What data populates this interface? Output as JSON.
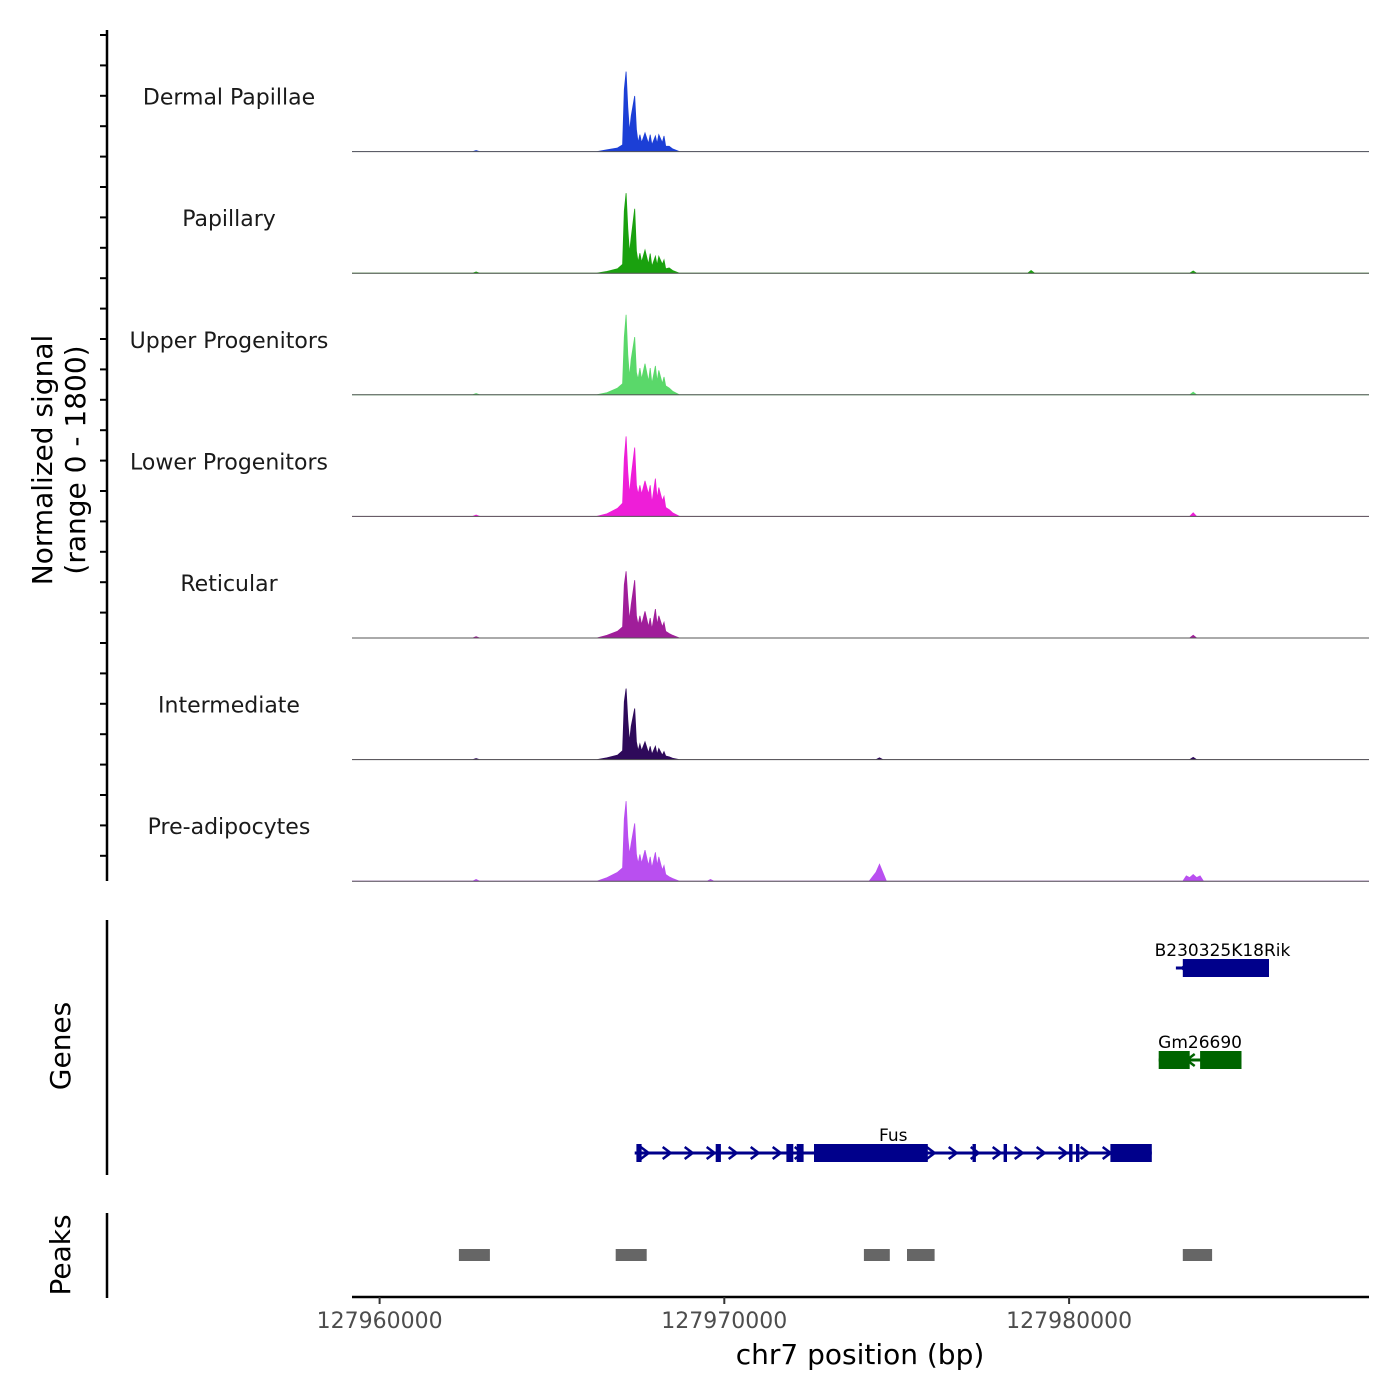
{
  "chart_data": {
    "type": "area",
    "title": "",
    "chromosome": "chr7",
    "xlabel": "chr7 position (bp)",
    "ylabel": "Normalized signal",
    "ylabel_range": "(range 0 - 1800)",
    "ylim": [
      0,
      1800
    ],
    "xlim": [
      127959200,
      127988700
    ],
    "x_ticks": [
      127960000,
      127970000,
      127980000
    ],
    "x_tick_labels": [
      "127960000",
      "127970000",
      "127980000"
    ],
    "genes_track_label": "Genes",
    "peaks_track_label": "Peaks",
    "tracks": [
      {
        "name": "Dermal Papillae",
        "color": "#1c3fd6",
        "x": [
          127959200,
          127962700,
          127962800,
          127962900,
          127964000,
          127966300,
          127966600,
          127966900,
          127967050,
          127967100,
          127967150,
          127967200,
          127967250,
          127967300,
          127967400,
          127967450,
          127967500,
          127967550,
          127967600,
          127967700,
          127967800,
          127967850,
          127967900,
          127968000,
          127968050,
          127968100,
          127968200,
          127968250,
          127968300,
          127968400,
          127968500,
          127968700,
          127969000,
          127972000,
          127974800,
          127983500,
          127985500,
          127988700
        ],
        "y": [
          0,
          0,
          25,
          0,
          0,
          0,
          40,
          80,
          150,
          1400,
          1800,
          1000,
          450,
          800,
          1250,
          500,
          200,
          380,
          200,
          420,
          180,
          380,
          150,
          350,
          180,
          380,
          200,
          350,
          120,
          120,
          60,
          0,
          0,
          0,
          0,
          0,
          0,
          0
        ]
      },
      {
        "name": "Papillary",
        "color": "#1aa10f",
        "x": [
          127959200,
          127962700,
          127962800,
          127962900,
          127966300,
          127966600,
          127966900,
          127967050,
          127967100,
          127967150,
          127967200,
          127967250,
          127967300,
          127967400,
          127967450,
          127967500,
          127967550,
          127967600,
          127967700,
          127967800,
          127967850,
          127967900,
          127968000,
          127968050,
          127968100,
          127968200,
          127968250,
          127968300,
          127968400,
          127968500,
          127968700,
          127978800,
          127978900,
          127979000,
          127983500,
          127983600,
          127983700,
          127988700
        ],
        "y": [
          0,
          0,
          30,
          0,
          0,
          40,
          100,
          200,
          1400,
          1800,
          1000,
          450,
          800,
          1450,
          500,
          250,
          450,
          250,
          520,
          200,
          440,
          150,
          380,
          180,
          380,
          200,
          300,
          100,
          120,
          60,
          0,
          0,
          60,
          0,
          0,
          50,
          0,
          0
        ]
      },
      {
        "name": "Upper Progenitors",
        "color": "#5ad86a",
        "x": [
          127959200,
          127962700,
          127962800,
          127962900,
          127966300,
          127966600,
          127966900,
          127967050,
          127967100,
          127967150,
          127967200,
          127967250,
          127967300,
          127967400,
          127967450,
          127967500,
          127967550,
          127967600,
          127967700,
          127967800,
          127967850,
          127967900,
          127968000,
          127968050,
          127968100,
          127968200,
          127968250,
          127968300,
          127968400,
          127968500,
          127968700,
          127983500,
          127983600,
          127983700,
          127988700
        ],
        "y": [
          0,
          0,
          30,
          0,
          0,
          50,
          150,
          250,
          1300,
          1800,
          900,
          400,
          800,
          1300,
          500,
          350,
          600,
          350,
          700,
          300,
          600,
          250,
          650,
          300,
          550,
          250,
          400,
          200,
          150,
          80,
          0,
          0,
          60,
          0,
          0
        ]
      },
      {
        "name": "Lower Progenitors",
        "color": "#ee1ed8",
        "x": [
          127959200,
          127962700,
          127962800,
          127962900,
          127966300,
          127966600,
          127966900,
          127967050,
          127967100,
          127967150,
          127967200,
          127967250,
          127967300,
          127967400,
          127967450,
          127967500,
          127967550,
          127967600,
          127967700,
          127967800,
          127967850,
          127967900,
          127968000,
          127968050,
          127968100,
          127968200,
          127968250,
          127968300,
          127968400,
          127968500,
          127968700,
          127983500,
          127983600,
          127983700,
          127988700
        ],
        "y": [
          0,
          0,
          30,
          0,
          0,
          60,
          180,
          300,
          1300,
          1800,
          1000,
          500,
          900,
          1550,
          700,
          500,
          700,
          500,
          800,
          500,
          700,
          300,
          850,
          400,
          650,
          350,
          450,
          200,
          150,
          80,
          0,
          0,
          80,
          0,
          0
        ]
      },
      {
        "name": "Reticular",
        "color": "#a01e9a",
        "x": [
          127959200,
          127962700,
          127962800,
          127962900,
          127966300,
          127966600,
          127966900,
          127967050,
          127967100,
          127967150,
          127967200,
          127967250,
          127967300,
          127967400,
          127967450,
          127967500,
          127967550,
          127967600,
          127967700,
          127967800,
          127967850,
          127967900,
          127968000,
          127968050,
          127968100,
          127968200,
          127968250,
          127968300,
          127968400,
          127968500,
          127968700,
          127983500,
          127983600,
          127983700,
          127988700
        ],
        "y": [
          0,
          0,
          30,
          0,
          0,
          60,
          150,
          250,
          1200,
          1500,
          900,
          400,
          750,
          1300,
          500,
          300,
          500,
          300,
          600,
          250,
          450,
          200,
          650,
          300,
          500,
          250,
          350,
          150,
          100,
          60,
          0,
          0,
          60,
          0,
          0
        ]
      },
      {
        "name": "Intermediate",
        "color": "#2e0a5a",
        "x": [
          127959200,
          127962700,
          127962800,
          127962900,
          127966300,
          127966600,
          127966900,
          127967050,
          127967100,
          127967150,
          127967200,
          127967250,
          127967300,
          127967400,
          127967450,
          127967500,
          127967550,
          127967600,
          127967700,
          127967800,
          127967850,
          127967900,
          127968000,
          127968050,
          127968100,
          127968200,
          127968250,
          127968300,
          127968400,
          127968500,
          127968700,
          127974400,
          127974500,
          127974600,
          127983500,
          127983600,
          127983700,
          127988700
        ],
        "y": [
          0,
          0,
          25,
          0,
          0,
          40,
          100,
          200,
          1300,
          1600,
          900,
          400,
          750,
          1150,
          400,
          200,
          350,
          200,
          400,
          150,
          300,
          120,
          300,
          120,
          250,
          100,
          180,
          80,
          60,
          30,
          0,
          0,
          40,
          0,
          0,
          50,
          0,
          0
        ]
      },
      {
        "name": "Pre-adipocytes",
        "color": "#b94ff0",
        "x": [
          127959200,
          127962700,
          127962800,
          127962900,
          127966300,
          127966600,
          127966900,
          127967050,
          127967100,
          127967150,
          127967200,
          127967250,
          127967300,
          127967400,
          127967450,
          127967500,
          127967550,
          127967600,
          127967700,
          127967800,
          127967850,
          127967900,
          127968000,
          127968050,
          127968100,
          127968200,
          127968250,
          127968300,
          127968400,
          127968500,
          127968700,
          127969000,
          127969500,
          127969600,
          127969700,
          127974200,
          127974400,
          127974500,
          127974700,
          127983300,
          127983400,
          127983500,
          127983600,
          127983700,
          127983800,
          127983900,
          127988700
        ],
        "y": [
          0,
          0,
          40,
          0,
          0,
          80,
          200,
          300,
          1400,
          1800,
          1000,
          600,
          850,
          1300,
          600,
          400,
          600,
          400,
          700,
          350,
          550,
          300,
          650,
          350,
          550,
          250,
          350,
          150,
          100,
          60,
          0,
          0,
          0,
          40,
          0,
          0,
          200,
          380,
          0,
          0,
          120,
          80,
          150,
          80,
          120,
          0,
          0
        ]
      }
    ],
    "genes": [
      {
        "name": "B230325K18Rik",
        "color": "#00008b",
        "strand": "-",
        "row": 0,
        "start": 127983100,
        "end": 127985800,
        "exons": [
          [
            127983300,
            127985800
          ]
        ]
      },
      {
        "name": "Gm26690",
        "color": "#006400",
        "strand": "-",
        "row": 1,
        "start": 127982600,
        "end": 127985000,
        "exons": [
          [
            127982600,
            127983500
          ],
          [
            127983800,
            127985000
          ]
        ]
      },
      {
        "name": "Fus",
        "color": "#00008b",
        "strand": "+",
        "row": 2,
        "start": 127967400,
        "end": 127982400,
        "exons": [
          [
            127967450,
            127967600
          ],
          [
            127969750,
            127969900
          ],
          [
            127971800,
            127972000
          ],
          [
            127972100,
            127972300
          ],
          [
            127972600,
            127975900
          ],
          [
            127977200,
            127977300
          ],
          [
            127978100,
            127978200
          ],
          [
            127980000,
            127980100
          ],
          [
            127980200,
            127980300
          ],
          [
            127981200,
            127982400
          ]
        ]
      }
    ],
    "peaks": [
      [
        127962300,
        127963200
      ],
      [
        127966850,
        127967750
      ],
      [
        127974050,
        127974800
      ],
      [
        127975300,
        127976100
      ],
      [
        127983300,
        127984150
      ]
    ]
  }
}
